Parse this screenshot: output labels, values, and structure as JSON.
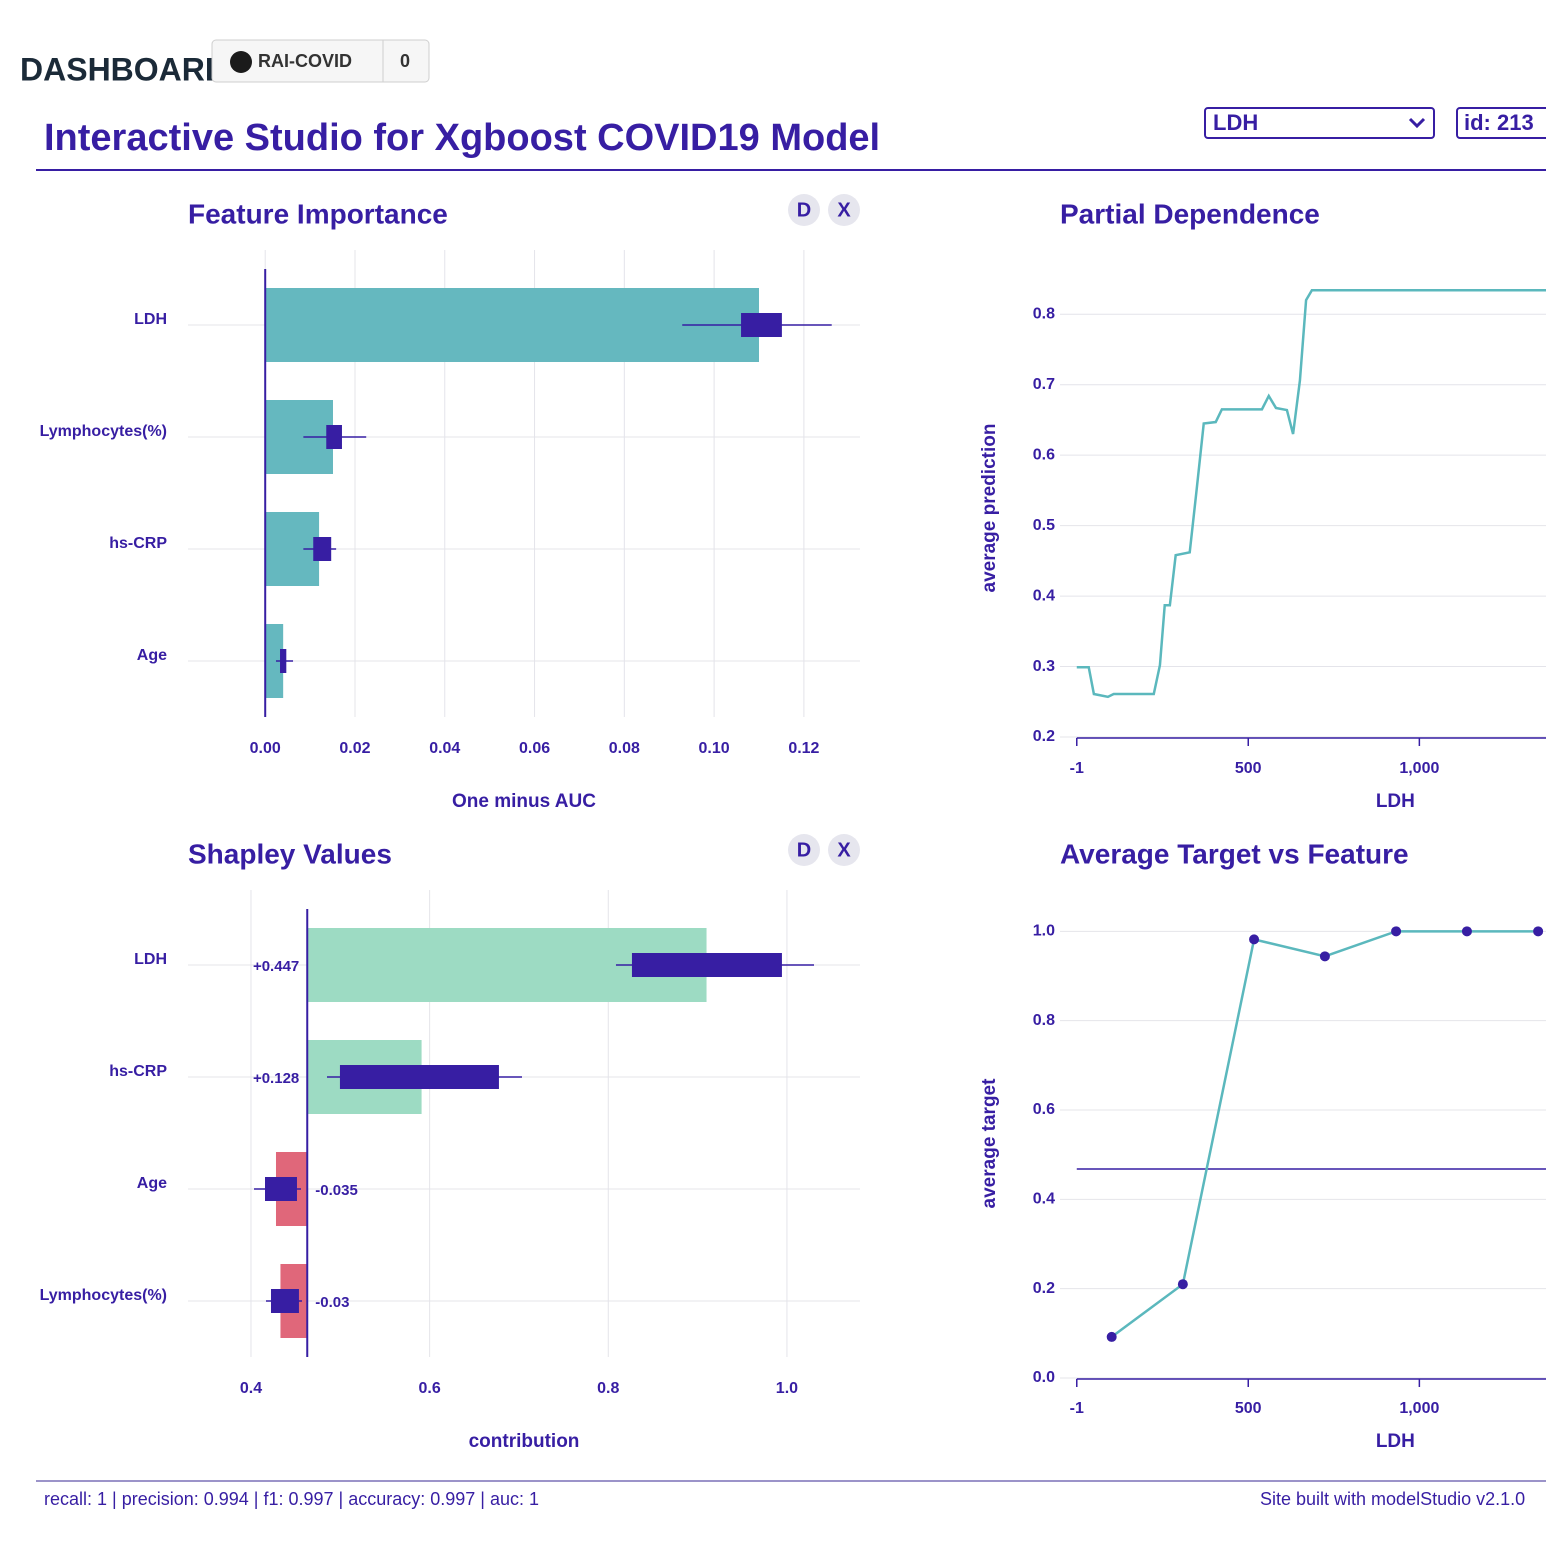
{
  "header": {
    "brand": "DASHBOARD",
    "repo": "RAI-COVID",
    "stars": "0",
    "title": "Interactive Studio for Xgboost COVID19 Model",
    "select": "LDH",
    "id": "id: 213"
  },
  "panel_buttons": [
    "D",
    "X"
  ],
  "chart_data": [
    {
      "type": "bar",
      "title": "Feature Importance",
      "x_label": "One minus AUC",
      "categories": [
        "LDH",
        "Lymphocytes(%)",
        "hs-CRP",
        "Age"
      ],
      "values": [
        0.11,
        0.0151,
        0.012,
        0.004
      ],
      "whisker_low": [
        0.0929,
        0.0085,
        0.0085,
        0.0024
      ],
      "box_low": [
        0.106,
        0.0136,
        0.0107,
        0.0033
      ],
      "box_high": [
        0.1151,
        0.0171,
        0.0147,
        0.0047
      ],
      "whisker_high": [
        0.1262,
        0.0225,
        0.0158,
        0.0062
      ],
      "color": "#65b8bf",
      "box_color": "#371ea3",
      "xlim": [
        -0.0172,
        0.1325
      ],
      "xticks": [
        {
          "value": 0,
          "label": "0.00"
        },
        {
          "value": 0.02,
          "label": "0.02"
        },
        {
          "value": 0.04,
          "label": "0.04"
        },
        {
          "value": 0.06,
          "label": "0.06"
        },
        {
          "value": 0.08,
          "label": "0.08"
        },
        {
          "value": 0.1,
          "label": "0.10"
        },
        {
          "value": 0.12,
          "label": "0.12"
        }
      ],
      "grid": true
    },
    {
      "type": "bar",
      "title": "Shapley Values",
      "x_label": "contribution",
      "categories": [
        "LDH",
        "hs-CRP",
        "Age",
        "Lymphocytes(%)"
      ],
      "baseline": 0.463,
      "values": [
        0.447,
        0.128,
        -0.035,
        -0.03
      ],
      "value_labels": [
        "+0.447",
        "+0.128",
        "-0.035",
        "-0.03"
      ],
      "whisker_low": [
        0.8086,
        0.4851,
        0.4034,
        0.4168
      ],
      "box_low": [
        0.8265,
        0.4996,
        0.4157,
        0.4224
      ],
      "box_high": [
        0.9944,
        0.6776,
        0.4515,
        0.4537
      ],
      "whisker_high": [
        1.0303,
        0.7034,
        0.456,
        0.4571
      ],
      "color": "#9ddbc3",
      "negative_color": "#e0677a",
      "box_color": "#371ea3",
      "xlim": [
        0.3295,
        1.0818
      ],
      "xticks": [
        0.4,
        0.6,
        0.8,
        {
          "value": 1,
          "label": "1.0"
        }
      ],
      "grid": true
    },
    {
      "type": "line",
      "title": "Partial Dependence",
      "x_label": "LDH",
      "y_label": "average prediction",
      "x": [
        -1,
        34,
        49,
        90,
        107,
        224,
        242,
        256,
        271,
        288,
        329,
        349,
        370,
        405,
        423,
        540,
        560,
        581,
        613,
        631,
        651,
        669,
        686,
        1370
      ],
      "values": [
        0.299,
        0.299,
        0.261,
        0.257,
        0.261,
        0.261,
        0.302,
        0.387,
        0.387,
        0.458,
        0.462,
        0.55,
        0.645,
        0.647,
        0.665,
        0.665,
        0.684,
        0.667,
        0.664,
        0.63,
        0.706,
        0.82,
        0.834,
        0.834
      ],
      "color": "#5bb8bd",
      "markers": false,
      "xlim": [
        -50,
        1370
      ],
      "ylim": [
        0.2,
        0.85
      ],
      "xticks": [
        -1,
        500,
        {
          "value": 1000,
          "label": "1,000"
        }
      ],
      "yticks": [
        0.2,
        0.3,
        0.4,
        0.5,
        0.6,
        0.7,
        0.8
      ],
      "grid": true
    },
    {
      "type": "line",
      "title": "Average Target vs Feature",
      "x_label": "LDH",
      "y_label": "average target",
      "x": [
        101,
        309,
        517,
        724,
        932,
        1139,
        1347
      ],
      "values": [
        0.092,
        0.21,
        0.982,
        0.944,
        1.0,
        1.0,
        1.0
      ],
      "color": "#5bb8bd",
      "marker_color": "#371ea3",
      "markers": true,
      "reference_line": 0.468,
      "xlim": [
        -50,
        1370
      ],
      "ylim": [
        0,
        1.05
      ],
      "xticks": [
        -1,
        500,
        {
          "value": 1000,
          "label": "1,000"
        }
      ],
      "yticks": [
        {
          "value": 0,
          "label": "0.0"
        },
        0.2,
        0.4,
        0.6,
        0.8,
        {
          "value": 1,
          "label": "1.0"
        }
      ],
      "grid": true
    }
  ],
  "footer": {
    "metrics": "recall: 1 | precision: 0.994 | f1: 0.997 | accuracy: 0.997 | auc: 1",
    "credit": "Site built with modelStudio v2.1.0"
  }
}
